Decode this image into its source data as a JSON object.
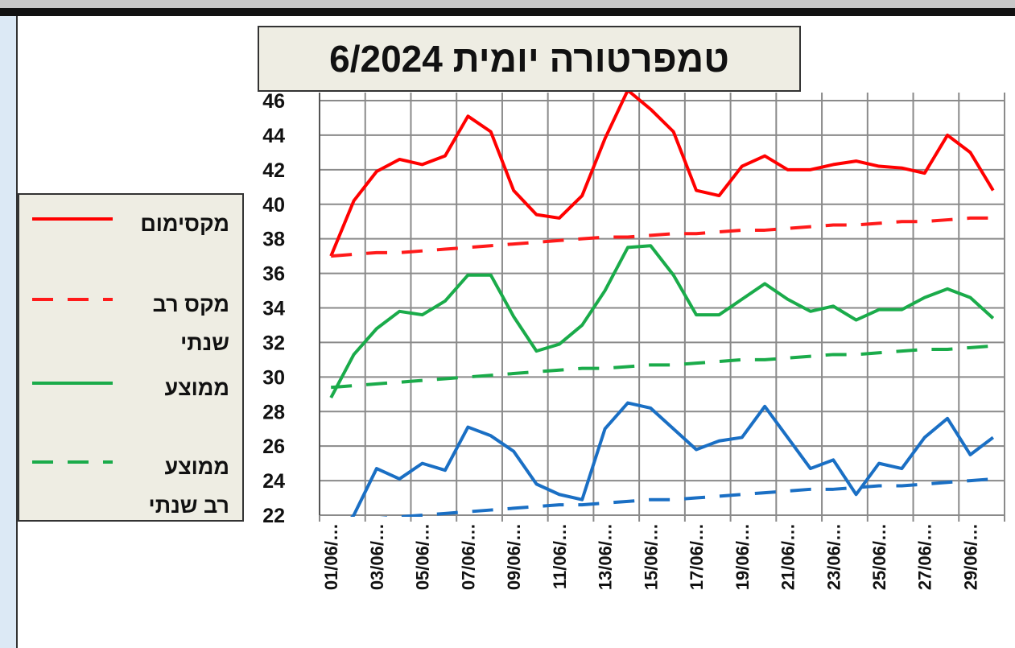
{
  "chart_data": {
    "type": "line",
    "title": "טמפרטורה יומית 6/2024",
    "categories": [
      "01/06/…",
      null,
      "03/06/…",
      null,
      "05/06/…",
      null,
      "07/06/…",
      null,
      "09/06/…",
      null,
      "11/06/…",
      null,
      "13/06/…",
      null,
      "15/06/…",
      null,
      "17/06/…",
      null,
      "19/06/…",
      null,
      "21/06/…",
      null,
      "23/06/…",
      null,
      "25/06/…",
      null,
      "27/06/…",
      null,
      "29/06/…",
      null
    ],
    "series": [
      {
        "name": "מקסימום",
        "color": "#ff0000",
        "dashed": false,
        "values": [
          37.0,
          40.2,
          41.9,
          42.6,
          42.3,
          42.8,
          45.1,
          44.2,
          40.8,
          39.4,
          39.2,
          40.5,
          43.8,
          46.6,
          45.5,
          44.2,
          40.8,
          40.5,
          42.2,
          42.8,
          42.0,
          42.0,
          42.3,
          42.5,
          42.2,
          42.1,
          41.8,
          44.0,
          43.0,
          40.8
        ]
      },
      {
        "name": "מקס רב שנתי",
        "color": "#ff1a1a",
        "dashed": true,
        "values": [
          37.0,
          37.1,
          37.2,
          37.2,
          37.3,
          37.4,
          37.5,
          37.6,
          37.7,
          37.8,
          37.9,
          38.0,
          38.1,
          38.1,
          38.2,
          38.3,
          38.3,
          38.4,
          38.5,
          38.5,
          38.6,
          38.7,
          38.8,
          38.8,
          38.9,
          39.0,
          39.0,
          39.1,
          39.2,
          39.2
        ]
      },
      {
        "name": "ממוצע",
        "color": "#1aab4a",
        "dashed": false,
        "values": [
          28.8,
          31.3,
          32.8,
          33.8,
          33.6,
          34.4,
          35.9,
          35.9,
          33.5,
          31.5,
          31.9,
          33.0,
          35.0,
          37.5,
          37.6,
          35.9,
          33.6,
          33.6,
          34.5,
          35.4,
          34.5,
          33.8,
          34.1,
          33.3,
          33.9,
          33.9,
          34.6,
          35.1,
          34.6,
          33.4
        ]
      },
      {
        "name": "ממוצע רב שנתי",
        "color": "#1aab4a",
        "dashed": true,
        "values": [
          29.4,
          29.5,
          29.6,
          29.7,
          29.8,
          29.9,
          30.0,
          30.1,
          30.2,
          30.3,
          30.4,
          30.5,
          30.5,
          30.6,
          30.7,
          30.7,
          30.8,
          30.9,
          31.0,
          31.0,
          31.1,
          31.2,
          31.3,
          31.3,
          31.4,
          31.5,
          31.6,
          31.6,
          31.7,
          31.8
        ]
      },
      {
        "color": "#1a6fc4",
        "dashed": false,
        "values": [
          20.5,
          22.0,
          24.7,
          24.1,
          25.0,
          24.6,
          27.1,
          26.6,
          25.7,
          23.8,
          23.2,
          22.9,
          27.0,
          28.5,
          28.2,
          27.0,
          25.8,
          26.3,
          26.5,
          28.3,
          26.5,
          24.7,
          25.2,
          23.2,
          25.0,
          24.7,
          26.5,
          27.6,
          25.5,
          26.5
        ]
      },
      {
        "color": "#1a6fc4",
        "dashed": true,
        "values": [
          21.6,
          21.7,
          21.8,
          21.9,
          22.0,
          22.1,
          22.2,
          22.3,
          22.4,
          22.5,
          22.6,
          22.6,
          22.7,
          22.8,
          22.9,
          22.9,
          23.0,
          23.1,
          23.2,
          23.3,
          23.4,
          23.5,
          23.5,
          23.6,
          23.7,
          23.7,
          23.8,
          23.9,
          24.0,
          24.1
        ]
      }
    ],
    "ylim": [
      22,
      46
    ],
    "yticks": [
      22,
      24,
      26,
      28,
      30,
      32,
      34,
      36,
      38,
      40,
      42,
      44,
      46
    ],
    "grid": true
  }
}
